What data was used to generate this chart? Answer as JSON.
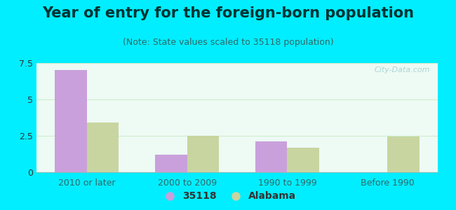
{
  "title": "Year of entry for the foreign-born population",
  "subtitle": "(Note: State values scaled to 35118 population)",
  "categories": [
    "2010 or later",
    "2000 to 2009",
    "1990 to 1999",
    "Before 1990"
  ],
  "values_35118": [
    7.0,
    1.2,
    2.1,
    0.0
  ],
  "values_alabama": [
    3.4,
    2.5,
    1.7,
    2.45
  ],
  "color_35118": "#c9a0dc",
  "color_alabama": "#c8d5a0",
  "background_outer": "#00eeff",
  "background_inner_top": "#eefaf4",
  "background_inner_bottom": "#d4f0e8",
  "ylim": [
    0,
    7.5
  ],
  "yticks": [
    0,
    2.5,
    5,
    7.5
  ],
  "bar_width": 0.32,
  "legend_label_35118": "35118",
  "legend_label_alabama": "Alabama",
  "title_fontsize": 15,
  "subtitle_fontsize": 9,
  "tick_fontsize": 9,
  "legend_fontsize": 10,
  "watermark": "City-Data.com"
}
